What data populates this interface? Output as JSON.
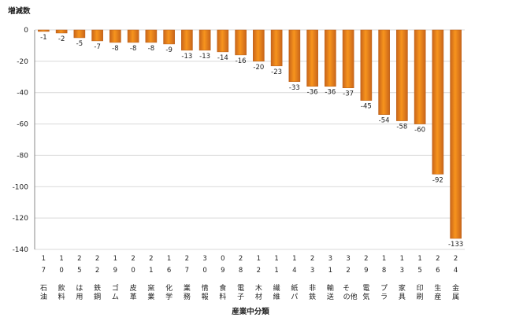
{
  "chart_data": {
    "type": "bar",
    "ylabel": "増減数",
    "xlabel": "産業中分類",
    "ylim": [
      -140,
      0
    ],
    "yticks": [
      0,
      -20,
      -40,
      -60,
      -80,
      -100,
      -120,
      -140
    ],
    "grid": true,
    "legend": "none",
    "bar_color": "#F7941D",
    "bar_color_dark": "#C9651A",
    "categories": [
      {
        "code": "17",
        "name": "石油"
      },
      {
        "code": "10",
        "name": "飲料"
      },
      {
        "code": "25",
        "name": "は用"
      },
      {
        "code": "22",
        "name": "鉄鋼"
      },
      {
        "code": "19",
        "name": "ゴム"
      },
      {
        "code": "20",
        "name": "皮革"
      },
      {
        "code": "21",
        "name": "窯業"
      },
      {
        "code": "16",
        "name": "化学"
      },
      {
        "code": "27",
        "name": "業務"
      },
      {
        "code": "30",
        "name": "情報"
      },
      {
        "code": "09",
        "name": "食料"
      },
      {
        "code": "28",
        "name": "電子"
      },
      {
        "code": "12",
        "name": "木材"
      },
      {
        "code": "11",
        "name": "繊維"
      },
      {
        "code": "14",
        "name": "紙パ"
      },
      {
        "code": "23",
        "name": "非鉄"
      },
      {
        "code": "31",
        "name": "輸送"
      },
      {
        "code": "32",
        "name": "その他"
      },
      {
        "code": "29",
        "name": "電気"
      },
      {
        "code": "18",
        "name": "プラ"
      },
      {
        "code": "13",
        "name": "家具"
      },
      {
        "code": "15",
        "name": "印刷"
      },
      {
        "code": "26",
        "name": "生産"
      },
      {
        "code": "24",
        "name": "金属"
      }
    ],
    "values": [
      -1,
      -2,
      -5,
      -7,
      -8,
      -8,
      -8,
      -9,
      -13,
      -13,
      -14,
      -16,
      -20,
      -23,
      -33,
      -36,
      -36,
      -37,
      -45,
      -54,
      -58,
      -60,
      -92,
      -133
    ]
  }
}
